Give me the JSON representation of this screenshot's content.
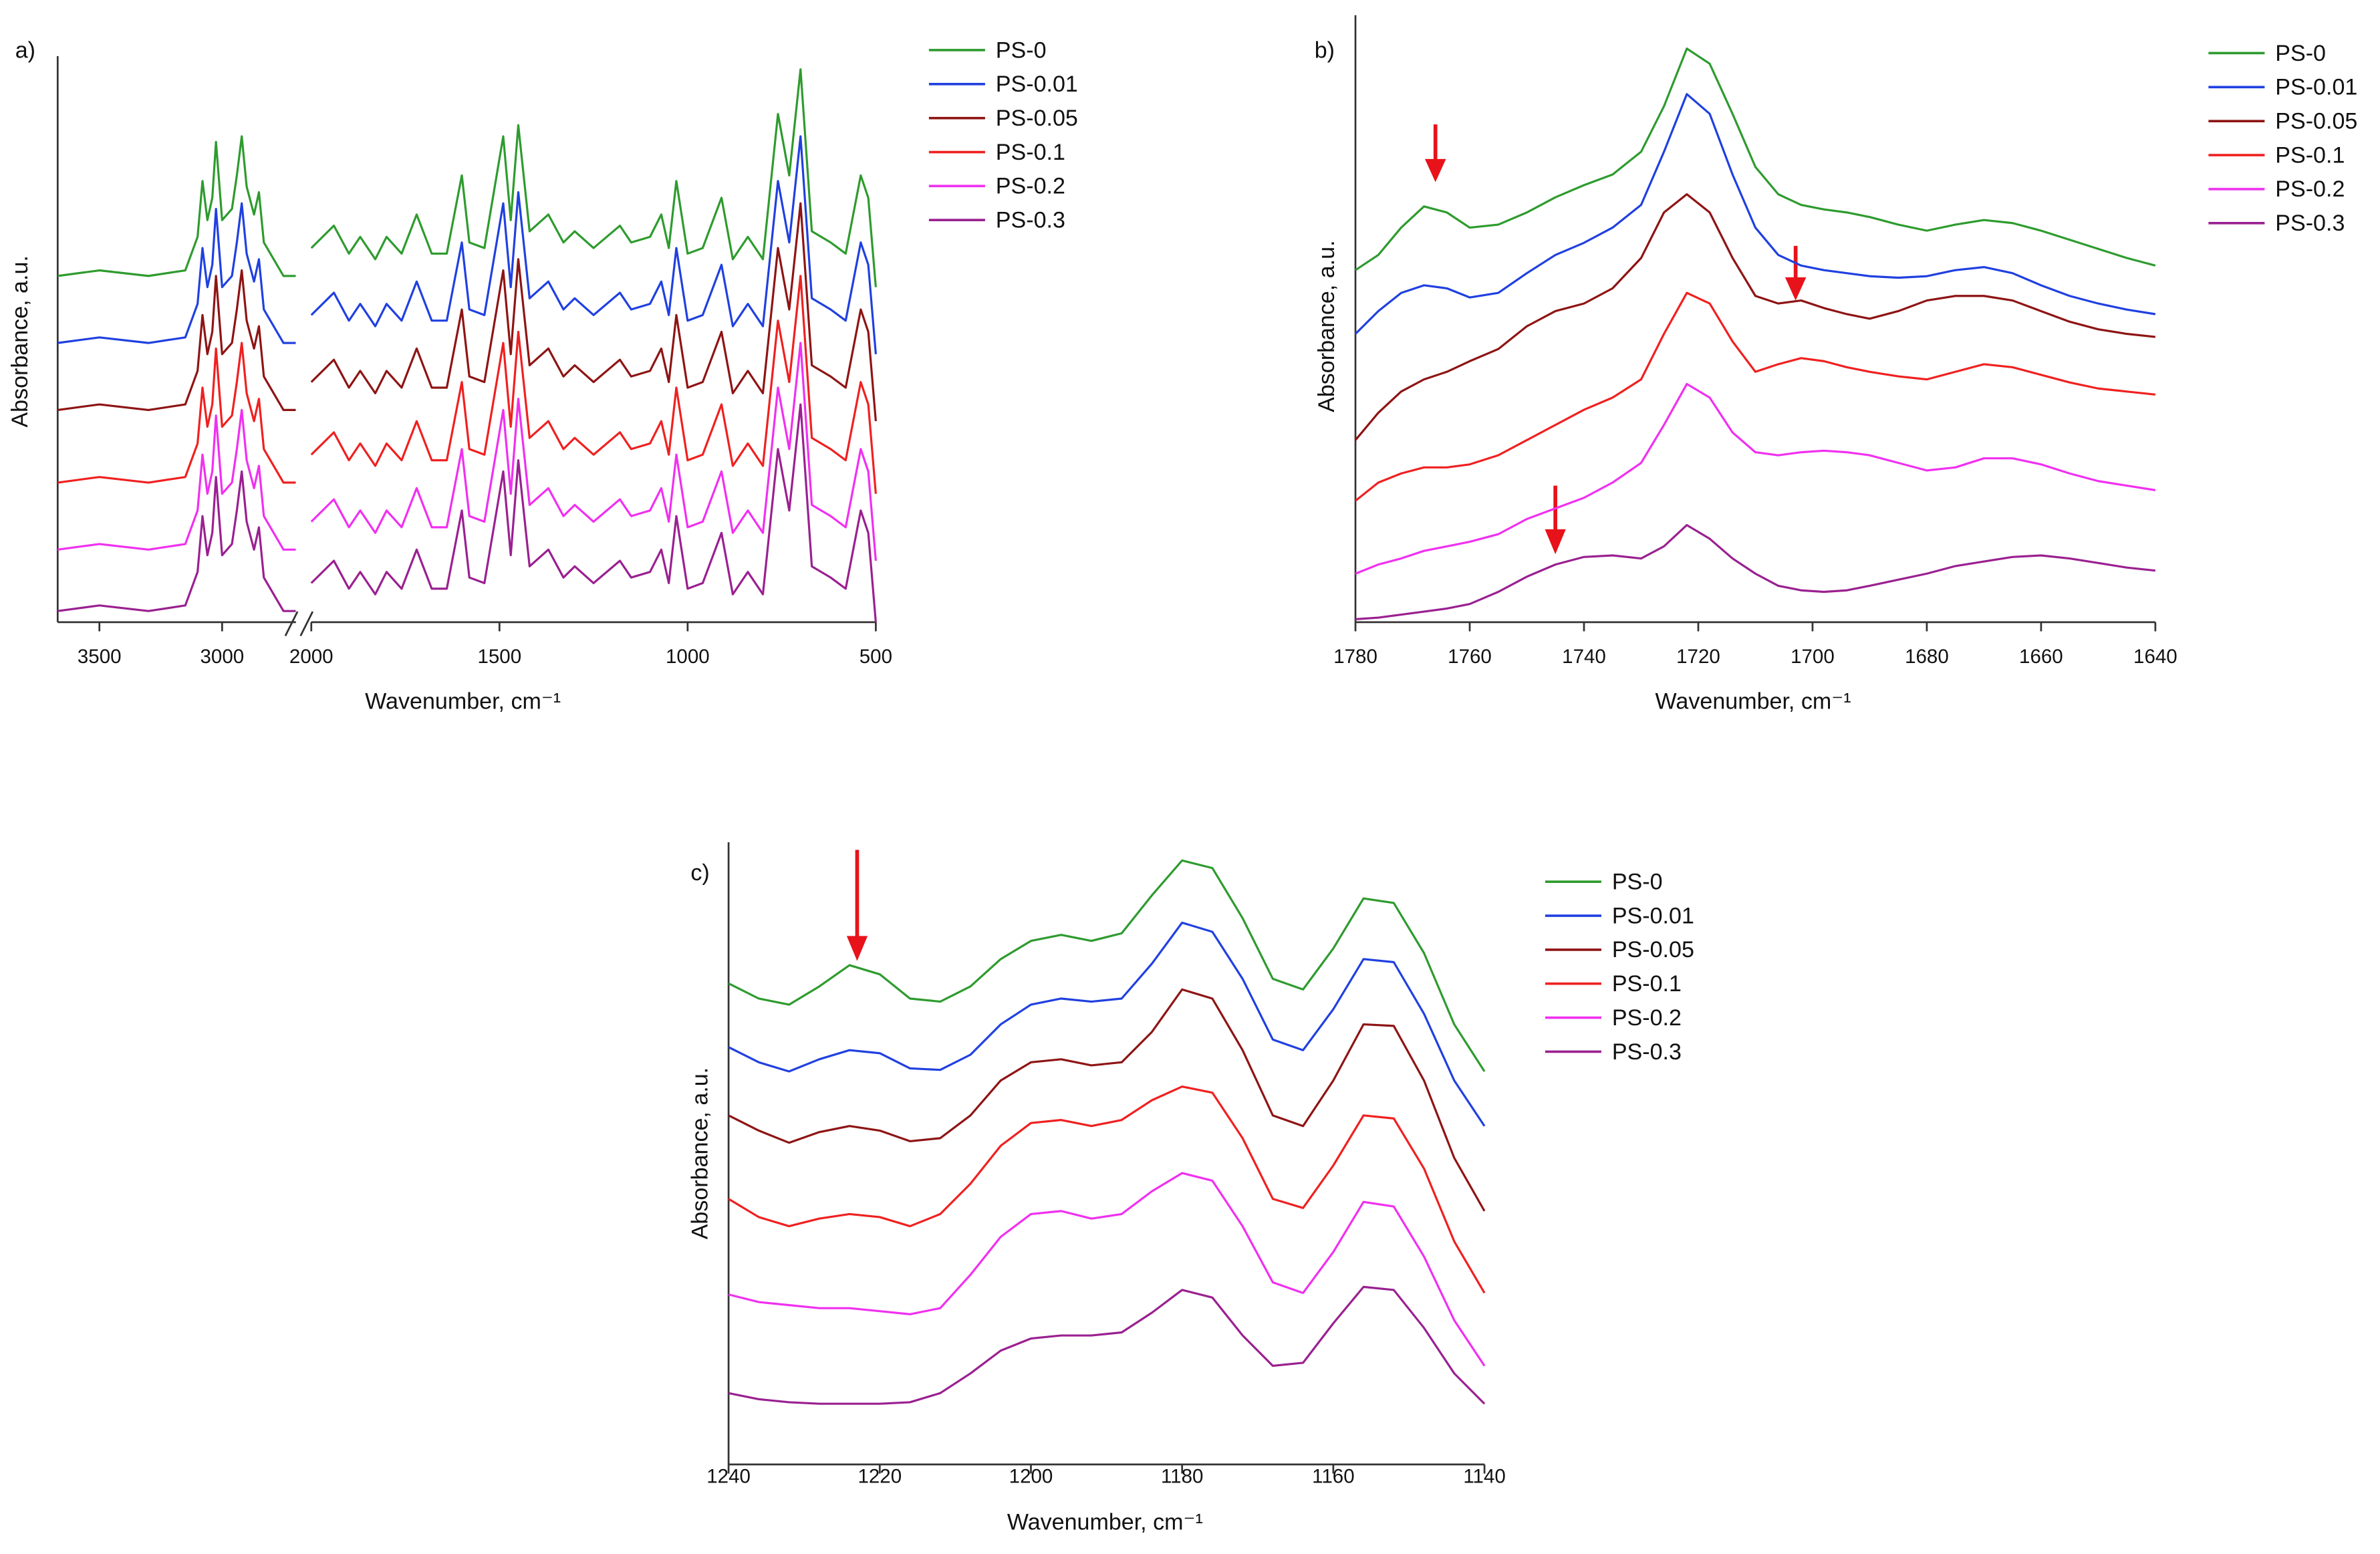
{
  "chart_data": [
    {
      "type": "line",
      "label": "a)",
      "xlabel": "Wavenumber, cm⁻¹",
      "ylabel": "Absorbance, a.u.",
      "xlim": [
        3670,
        500
      ],
      "xbreak": [
        2700,
        2000
      ],
      "xticks": [
        3500,
        3000,
        2000,
        1500,
        1000,
        500
      ],
      "ylim": [
        0,
        10
      ],
      "x": [
        3670,
        3500,
        3300,
        3150,
        3100,
        3080,
        3060,
        3040,
        3025,
        3000,
        2960,
        2940,
        2920,
        2900,
        2870,
        2850,
        2830,
        2750,
        2700,
        2000,
        1940,
        1900,
        1870,
        1830,
        1800,
        1760,
        1720,
        1680,
        1640,
        1600,
        1580,
        1540,
        1490,
        1470,
        1450,
        1420,
        1370,
        1330,
        1300,
        1250,
        1180,
        1150,
        1100,
        1070,
        1050,
        1030,
        1000,
        960,
        910,
        880,
        840,
        800,
        760,
        730,
        700,
        670,
        620,
        580,
        540,
        520,
        500
      ],
      "series": [
        {
          "name": "PS-0",
          "color": "#2e9b2e",
          "values": [
            6.2,
            6.3,
            6.2,
            6.3,
            6.9,
            7.9,
            7.2,
            7.6,
            8.6,
            7.2,
            7.4,
            8.0,
            8.7,
            7.8,
            7.3,
            7.7,
            6.8,
            6.2,
            6.2,
            6.7,
            7.1,
            6.6,
            6.9,
            6.5,
            6.9,
            6.6,
            7.3,
            6.6,
            6.6,
            8.0,
            6.8,
            6.7,
            8.7,
            7.2,
            8.9,
            7.0,
            7.3,
            6.8,
            7.0,
            6.7,
            7.1,
            6.8,
            6.9,
            7.3,
            6.7,
            7.9,
            6.6,
            6.7,
            7.6,
            6.5,
            6.9,
            6.5,
            9.1,
            8.0,
            9.9,
            7.0,
            6.8,
            6.6,
            8.0,
            7.6,
            6.0
          ]
        },
        {
          "name": "PS-0.01",
          "color": "#2040e0",
          "values": [
            5.0,
            5.1,
            5.0,
            5.1,
            5.7,
            6.7,
            6.0,
            6.4,
            7.4,
            6.0,
            6.2,
            6.8,
            7.5,
            6.6,
            6.1,
            6.5,
            5.6,
            5.0,
            5.0,
            5.5,
            5.9,
            5.4,
            5.7,
            5.3,
            5.7,
            5.4,
            6.1,
            5.4,
            5.4,
            6.8,
            5.6,
            5.5,
            7.5,
            6.0,
            7.7,
            5.8,
            6.1,
            5.6,
            5.8,
            5.5,
            5.9,
            5.6,
            5.7,
            6.1,
            5.5,
            6.7,
            5.4,
            5.5,
            6.4,
            5.3,
            5.7,
            5.3,
            7.9,
            6.8,
            8.7,
            5.8,
            5.6,
            5.4,
            6.8,
            6.4,
            4.8
          ]
        },
        {
          "name": "PS-0.05",
          "color": "#8e1414",
          "values": [
            3.8,
            3.9,
            3.8,
            3.9,
            4.5,
            5.5,
            4.8,
            5.2,
            6.2,
            4.8,
            5.0,
            5.6,
            6.3,
            5.4,
            4.9,
            5.3,
            4.4,
            3.8,
            3.8,
            4.3,
            4.7,
            4.2,
            4.5,
            4.1,
            4.5,
            4.2,
            4.9,
            4.2,
            4.2,
            5.6,
            4.4,
            4.3,
            6.3,
            4.8,
            6.5,
            4.6,
            4.9,
            4.4,
            4.6,
            4.3,
            4.7,
            4.4,
            4.5,
            4.9,
            4.3,
            5.5,
            4.2,
            4.3,
            5.2,
            4.1,
            4.5,
            4.1,
            6.7,
            5.6,
            7.5,
            4.6,
            4.4,
            4.2,
            5.6,
            5.2,
            3.6
          ]
        },
        {
          "name": "PS-0.1",
          "color": "#f02020",
          "values": [
            2.5,
            2.6,
            2.5,
            2.6,
            3.2,
            4.2,
            3.5,
            3.9,
            4.9,
            3.5,
            3.7,
            4.3,
            5.0,
            4.1,
            3.6,
            4.0,
            3.1,
            2.5,
            2.5,
            3.0,
            3.4,
            2.9,
            3.2,
            2.8,
            3.2,
            2.9,
            3.6,
            2.9,
            2.9,
            4.3,
            3.1,
            3.0,
            5.0,
            3.5,
            5.2,
            3.3,
            3.6,
            3.1,
            3.3,
            3.0,
            3.4,
            3.1,
            3.2,
            3.6,
            3.0,
            4.2,
            2.9,
            3.0,
            3.9,
            2.8,
            3.2,
            2.8,
            5.4,
            4.3,
            6.2,
            3.3,
            3.1,
            2.9,
            4.3,
            3.9,
            2.3
          ]
        },
        {
          "name": "PS-0.2",
          "color": "#f030f0",
          "values": [
            1.3,
            1.4,
            1.3,
            1.4,
            2.0,
            3.0,
            2.3,
            2.7,
            3.7,
            2.3,
            2.5,
            3.1,
            3.8,
            2.9,
            2.4,
            2.8,
            1.9,
            1.3,
            1.3,
            1.8,
            2.2,
            1.7,
            2.0,
            1.6,
            2.0,
            1.7,
            2.4,
            1.7,
            1.7,
            3.1,
            1.9,
            1.8,
            3.8,
            2.3,
            4.0,
            2.1,
            2.4,
            1.9,
            2.1,
            1.8,
            2.2,
            1.9,
            2.0,
            2.4,
            1.8,
            3.0,
            1.7,
            1.8,
            2.7,
            1.6,
            2.0,
            1.6,
            4.2,
            3.1,
            5.0,
            2.1,
            1.9,
            1.7,
            3.1,
            2.7,
            1.1
          ]
        },
        {
          "name": "PS-0.3",
          "color": "#9a2090",
          "values": [
            0.2,
            0.3,
            0.2,
            0.3,
            0.9,
            1.9,
            1.2,
            1.6,
            2.6,
            1.2,
            1.4,
            2.0,
            2.7,
            1.8,
            1.3,
            1.7,
            0.8,
            0.2,
            0.2,
            0.7,
            1.1,
            0.6,
            0.9,
            0.5,
            0.9,
            0.6,
            1.3,
            0.6,
            0.6,
            2.0,
            0.8,
            0.7,
            2.7,
            1.2,
            2.9,
            1.0,
            1.3,
            0.8,
            1.0,
            0.7,
            1.1,
            0.8,
            0.9,
            1.3,
            0.7,
            1.9,
            0.6,
            0.7,
            1.6,
            0.5,
            0.9,
            0.5,
            3.1,
            2.0,
            3.9,
            1.0,
            0.8,
            0.6,
            2.0,
            1.6,
            0.0
          ]
        }
      ]
    },
    {
      "type": "line",
      "label": "b)",
      "xlabel": "Wavenumber, cm⁻¹",
      "ylabel": "Absorbance, a.u.",
      "xlim": [
        1780,
        1640
      ],
      "xticks": [
        1780,
        1760,
        1740,
        1720,
        1700,
        1680,
        1660,
        1640
      ],
      "ylim": [
        0,
        395
      ],
      "x": [
        1780,
        1776,
        1772,
        1768,
        1764,
        1760,
        1755,
        1750,
        1745,
        1740,
        1735,
        1730,
        1726,
        1722,
        1718,
        1714,
        1710,
        1706,
        1702,
        1698,
        1694,
        1690,
        1685,
        1680,
        1675,
        1670,
        1665,
        1660,
        1655,
        1650,
        1645,
        1640
      ],
      "series": [
        {
          "name": "PS-0",
          "color": "#2e9b2e",
          "values": [
            232,
            242,
            260,
            274,
            270,
            260,
            262,
            270,
            280,
            288,
            295,
            310,
            340,
            378,
            368,
            335,
            300,
            282,
            275,
            272,
            270,
            267,
            262,
            258,
            262,
            265,
            263,
            258,
            252,
            246,
            240,
            235
          ]
        },
        {
          "name": "PS-0.01",
          "color": "#2040e0",
          "values": [
            190,
            205,
            217,
            222,
            220,
            214,
            217,
            230,
            242,
            250,
            260,
            275,
            310,
            348,
            335,
            295,
            260,
            242,
            235,
            232,
            230,
            228,
            227,
            228,
            232,
            234,
            230,
            222,
            215,
            210,
            206,
            203
          ]
        },
        {
          "name": "PS-0.05",
          "color": "#8e1414",
          "values": [
            120,
            138,
            152,
            160,
            165,
            172,
            180,
            195,
            205,
            210,
            220,
            240,
            270,
            282,
            270,
            240,
            215,
            210,
            212,
            207,
            203,
            200,
            205,
            212,
            215,
            215,
            212,
            205,
            198,
            193,
            190,
            188
          ]
        },
        {
          "name": "PS-0.1",
          "color": "#f02020",
          "values": [
            80,
            92,
            98,
            102,
            102,
            104,
            110,
            120,
            130,
            140,
            148,
            160,
            190,
            217,
            210,
            185,
            165,
            170,
            174,
            172,
            168,
            165,
            162,
            160,
            165,
            170,
            168,
            163,
            158,
            154,
            152,
            150
          ]
        },
        {
          "name": "PS-0.2",
          "color": "#f030f0",
          "values": [
            32,
            38,
            42,
            47,
            50,
            53,
            58,
            68,
            75,
            82,
            92,
            105,
            130,
            157,
            148,
            125,
            112,
            110,
            112,
            113,
            112,
            110,
            105,
            100,
            102,
            108,
            108,
            104,
            98,
            93,
            90,
            87
          ]
        },
        {
          "name": "PS-0.3",
          "color": "#9a2090",
          "values": [
            2,
            3,
            5,
            7,
            9,
            12,
            20,
            30,
            38,
            43,
            44,
            42,
            50,
            64,
            55,
            42,
            32,
            24,
            21,
            20,
            21,
            24,
            28,
            32,
            37,
            40,
            43,
            44,
            42,
            39,
            36,
            34
          ]
        }
      ]
    },
    {
      "type": "line",
      "label": "c)",
      "xlabel": "Wavenumber, cm⁻¹",
      "ylabel": "Absorbance, a.u.",
      "xlim": [
        1240,
        1140
      ],
      "xticks": [
        1240,
        1220,
        1200,
        1180,
        1160,
        1140
      ],
      "ylim": [
        0,
        405
      ],
      "x": [
        1240,
        1236,
        1232,
        1228,
        1224,
        1220,
        1216,
        1212,
        1208,
        1204,
        1200,
        1196,
        1192,
        1188,
        1184,
        1180,
        1176,
        1172,
        1168,
        1164,
        1160,
        1156,
        1152,
        1148,
        1144,
        1140
      ],
      "series": [
        {
          "name": "PS-0",
          "color": "#2e9b2e",
          "values": [
            317,
            307,
            303,
            315,
            329,
            323,
            307,
            305,
            315,
            333,
            345,
            349,
            345,
            350,
            375,
            398,
            393,
            360,
            320,
            313,
            340,
            373,
            370,
            337,
            290,
            259
          ]
        },
        {
          "name": "PS-0.01",
          "color": "#2040e0",
          "values": [
            275,
            265,
            259,
            267,
            273,
            271,
            261,
            260,
            270,
            290,
            303,
            307,
            305,
            307,
            330,
            357,
            351,
            320,
            280,
            273,
            300,
            333,
            331,
            297,
            253,
            223
          ]
        },
        {
          "name": "PS-0.05",
          "color": "#8e1414",
          "values": [
            230,
            220,
            212,
            219,
            223,
            220,
            213,
            215,
            230,
            253,
            265,
            267,
            263,
            265,
            285,
            313,
            307,
            273,
            230,
            223,
            253,
            290,
            289,
            253,
            202,
            167
          ]
        },
        {
          "name": "PS-0.1",
          "color": "#f02020",
          "values": [
            175,
            163,
            157,
            162,
            165,
            163,
            157,
            165,
            185,
            210,
            225,
            227,
            223,
            227,
            240,
            249,
            245,
            215,
            175,
            169,
            197,
            230,
            228,
            195,
            147,
            113
          ]
        },
        {
          "name": "PS-0.2",
          "color": "#f030f0",
          "values": [
            112,
            107,
            105,
            103,
            103,
            101,
            99,
            103,
            125,
            150,
            165,
            167,
            162,
            165,
            180,
            192,
            187,
            157,
            120,
            113,
            140,
            173,
            170,
            137,
            95,
            65
          ]
        },
        {
          "name": "PS-0.3",
          "color": "#9a2090",
          "values": [
            47,
            43,
            41,
            40,
            40,
            40,
            41,
            47,
            60,
            75,
            83,
            85,
            85,
            87,
            100,
            115,
            110,
            85,
            65,
            67,
            93,
            117,
            115,
            90,
            60,
            40
          ]
        }
      ]
    }
  ]
}
